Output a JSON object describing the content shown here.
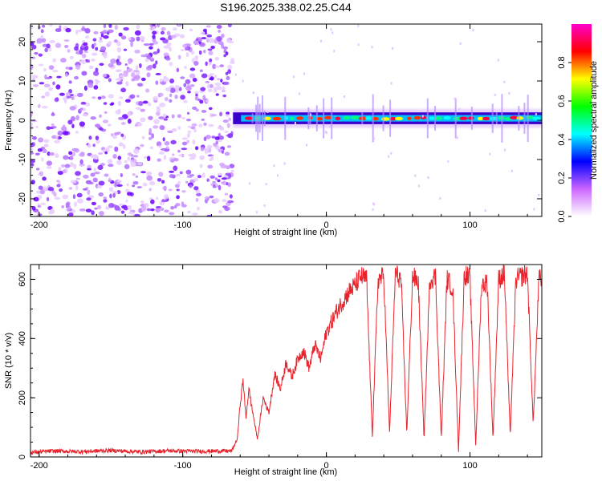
{
  "title": "S196.2025.338.02.25.C44",
  "chart_data": [
    {
      "type": "heatmap",
      "name": "spectrogram",
      "xlabel": "Height of straight line (km)",
      "ylabel": "Frequency (Hz)",
      "xlim": [
        -206,
        150
      ],
      "ylim": [
        -24.5,
        24.5
      ],
      "xticks": [
        -200,
        -100,
        0,
        100
      ],
      "xtick_labels": [
        "-200",
        "-100",
        "0",
        "100"
      ],
      "yticks": [
        -20,
        -10,
        0,
        10,
        20
      ],
      "ytick_labels": [
        "-20",
        "-10",
        "0",
        "10",
        "20"
      ],
      "noise_region": [
        -206,
        -65
      ],
      "signal_band": {
        "x_start": -65,
        "x_end": 150,
        "frequency_center": 0.5,
        "half_width": 1.5
      },
      "colorbar": {
        "label": "Normalized spectral amplitude",
        "range": [
          0,
          1
        ],
        "ticks": [
          0.0,
          0.2,
          0.4,
          0.6,
          0.8
        ],
        "tick_labels": [
          "0.0",
          "0.2",
          "0.4",
          "0.6",
          "0.8"
        ],
        "colors": [
          "#ffffff",
          "#cc66ff",
          "#0000ff",
          "#00ffff",
          "#00ff00",
          "#ffff00",
          "#ff0000",
          "#ff00cc"
        ]
      }
    },
    {
      "type": "line",
      "name": "snr",
      "xlabel": "Height of straight line (km)",
      "ylabel": "SNR (10 * v/v)",
      "xlim": [
        -206,
        150
      ],
      "ylim": [
        0,
        650
      ],
      "xticks": [
        -200,
        -100,
        0,
        100
      ],
      "xtick_labels": [
        "-200",
        "-100",
        "0",
        "100"
      ],
      "yticks": [
        0,
        200,
        400,
        600
      ],
      "ytick_labels": [
        "0",
        "200",
        "400",
        "600"
      ],
      "color": "#e8232b",
      "series": [
        {
          "name": "SNR",
          "x": [
            -206,
            -190,
            -170,
            -150,
            -130,
            -110,
            -90,
            -75,
            -66,
            -62,
            -60,
            -58,
            -56,
            -54,
            -52,
            -48,
            -44,
            -40,
            -36,
            -32,
            -28,
            -24,
            -20,
            -16,
            -12,
            -8,
            -4,
            0,
            4,
            8,
            12,
            16,
            20,
            24,
            28,
            32,
            36,
            40,
            44,
            48,
            52,
            56,
            60,
            64,
            68,
            72,
            76,
            80,
            84,
            88,
            92,
            96,
            100,
            104,
            108,
            112,
            116,
            120,
            124,
            128,
            132,
            136,
            140,
            144,
            148,
            150
          ],
          "y": [
            15,
            20,
            18,
            22,
            17,
            21,
            19,
            20,
            20,
            60,
            180,
            260,
            130,
            230,
            170,
            60,
            200,
            150,
            280,
            230,
            320,
            270,
            330,
            360,
            300,
            380,
            330,
            420,
            460,
            500,
            530,
            560,
            580,
            610,
            600,
            70,
            600,
            610,
            80,
            620,
            600,
            80,
            610,
            590,
            60,
            600,
            610,
            60,
            600,
            570,
            20,
            620,
            600,
            40,
            580,
            590,
            60,
            600,
            620,
            70,
            600,
            610,
            620,
            110,
            600,
            600
          ]
        }
      ]
    }
  ]
}
